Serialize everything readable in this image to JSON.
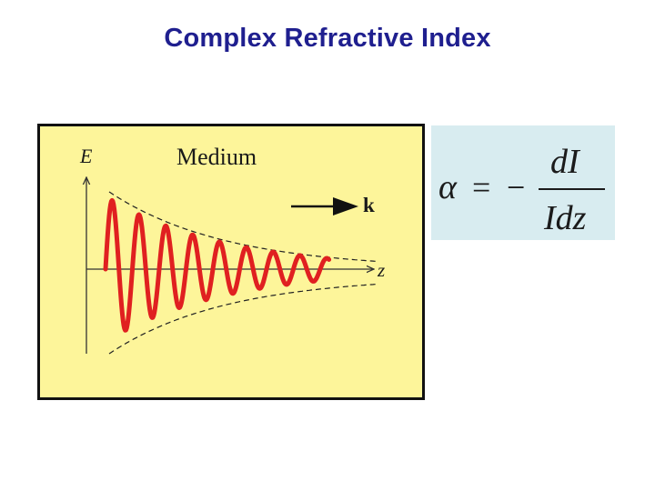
{
  "slide": {
    "title": "Complex Refractive Index"
  },
  "figure": {
    "medium_label": "Medium",
    "field_axis_label": "E",
    "propagation_axis_label": "z",
    "wavevector_label": "k",
    "colors": {
      "background": "#fdf59a",
      "wave": "#e02020",
      "envelope": "#222222",
      "axis": "#333333"
    }
  },
  "formula": {
    "lhs": "α",
    "equals": "=",
    "sign": "−",
    "numerator": "dI",
    "denominator": "Idz",
    "background": "#d8ecf0"
  }
}
